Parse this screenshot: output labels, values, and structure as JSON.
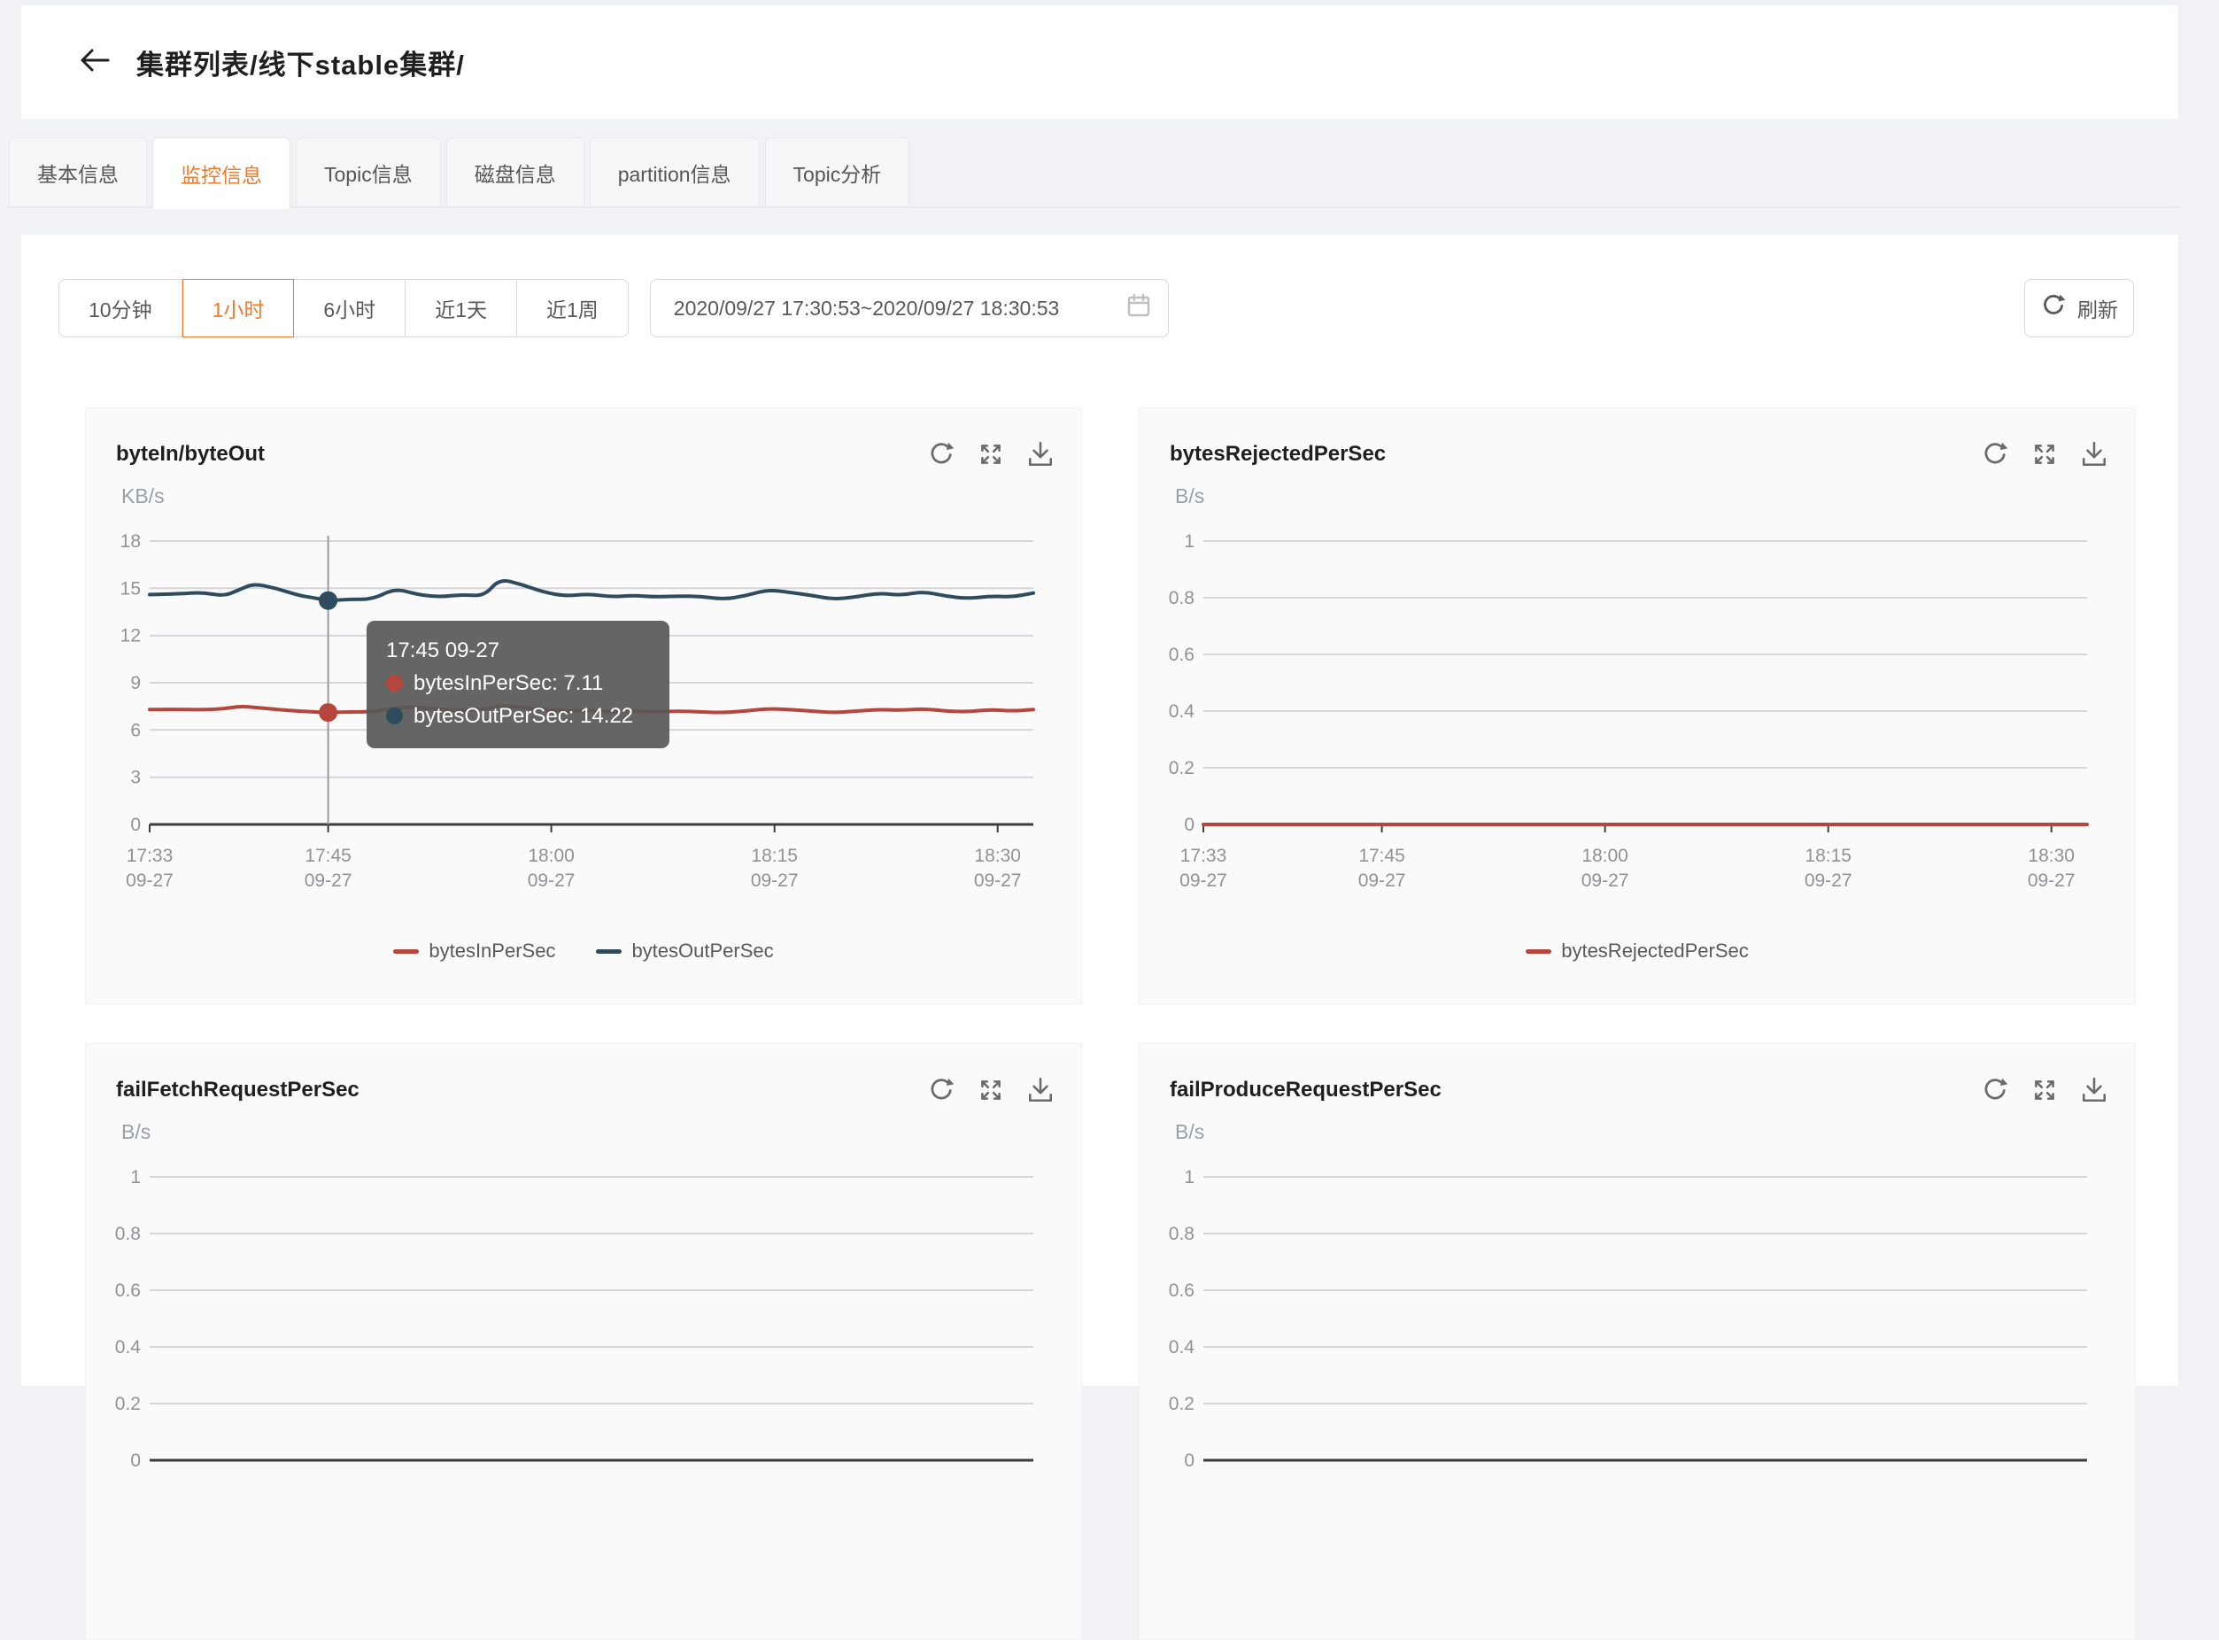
{
  "colors": {
    "accent": "#ed7b30",
    "page_bg": "#f0f2f5",
    "series_red": "#b5463c",
    "series_navy": "#2f4b5e",
    "axis_label": "#8f9296",
    "grid_line": "#d4d6d9",
    "axis_line": "#3b3b3b"
  },
  "header": {
    "back_icon": "arrow-left",
    "breadcrumb": "集群列表/线下stable集群/"
  },
  "tabs": [
    {
      "label": "基本信息",
      "active": false
    },
    {
      "label": "监控信息",
      "active": true
    },
    {
      "label": "Topic信息",
      "active": false
    },
    {
      "label": "磁盘信息",
      "active": false
    },
    {
      "label": "partition信息",
      "active": false
    },
    {
      "label": "Topic分析",
      "active": false
    }
  ],
  "toolbar": {
    "ranges": [
      {
        "label": "10分钟",
        "active": false
      },
      {
        "label": "1小时",
        "active": true
      },
      {
        "label": "6小时",
        "active": false
      },
      {
        "label": "近1天",
        "active": false
      },
      {
        "label": "近1周",
        "active": false
      }
    ],
    "date_start": "2020/09/27 17:30:53",
    "date_separator": "~",
    "date_end": "2020/09/27 18:30:53",
    "calendar_icon": "calendar",
    "refresh_label": "刷新",
    "refresh_icon": "reload"
  },
  "panel_actions": [
    "reload",
    "expand",
    "download"
  ],
  "chart_data": [
    {
      "type": "line",
      "title": "byteIn/byteOut",
      "unit": "KB/s",
      "ylim": [
        0,
        18
      ],
      "yticks": [
        0,
        3,
        6,
        9,
        12,
        15,
        18
      ],
      "x_max": 59.4,
      "x_ticks": [
        {
          "min": 0,
          "time": "17:33",
          "date": "09-27"
        },
        {
          "min": 12,
          "time": "17:45",
          "date": "09-27"
        },
        {
          "min": 27,
          "time": "18:00",
          "date": "09-27"
        },
        {
          "min": 42,
          "time": "18:15",
          "date": "09-27"
        },
        {
          "min": 57,
          "time": "18:30",
          "date": "09-27"
        }
      ],
      "x": [
        0,
        2,
        3.5,
        5,
        6,
        7,
        8.5,
        10,
        11,
        12,
        13.5,
        15,
        16.5,
        18,
        19.5,
        21,
        22.5,
        23.5,
        25,
        26.5,
        28,
        29.5,
        31,
        32.5,
        34,
        35.5,
        37,
        38.5,
        40,
        41.5,
        43,
        44.5,
        46,
        47.5,
        49,
        50.5,
        52,
        53.5,
        55,
        56.5,
        58,
        59.4
      ],
      "series": [
        {
          "name": "bytesInPerSec",
          "color": "#b5463c",
          "values": [
            7.3,
            7.32,
            7.28,
            7.35,
            7.5,
            7.45,
            7.3,
            7.2,
            7.15,
            7.11,
            7.15,
            7.15,
            7.4,
            7.45,
            7.3,
            7.25,
            7.3,
            7.55,
            7.45,
            7.3,
            7.2,
            7.25,
            7.15,
            7.2,
            7.15,
            7.2,
            7.15,
            7.1,
            7.2,
            7.35,
            7.3,
            7.2,
            7.1,
            7.2,
            7.3,
            7.25,
            7.35,
            7.2,
            7.15,
            7.3,
            7.2,
            7.3
          ]
        },
        {
          "name": "bytesOutPerSec",
          "color": "#2f4b5e",
          "values": [
            14.6,
            14.65,
            14.75,
            14.5,
            14.9,
            15.3,
            15.0,
            14.55,
            14.4,
            14.22,
            14.3,
            14.3,
            15.0,
            14.6,
            14.45,
            14.6,
            14.5,
            15.6,
            15.25,
            14.75,
            14.5,
            14.65,
            14.45,
            14.55,
            14.45,
            14.5,
            14.5,
            14.3,
            14.5,
            14.9,
            14.75,
            14.55,
            14.3,
            14.45,
            14.7,
            14.55,
            14.8,
            14.5,
            14.35,
            14.5,
            14.45,
            14.7
          ]
        }
      ],
      "legend": [
        "bytesInPerSec",
        "bytesOutPerSec"
      ],
      "highlight": {
        "x_min": 12,
        "points": [
          {
            "series": "bytesInPerSec",
            "value": 7.11
          },
          {
            "series": "bytesOutPerSec",
            "value": 14.22
          }
        ]
      },
      "tooltip": {
        "time": "17:45 09-27",
        "rows": [
          {
            "label": "bytesInPerSec",
            "value": "7.11",
            "color": "#b5463c"
          },
          {
            "label": "bytesOutPerSec",
            "value": "14.22",
            "color": "#2f4b5e"
          }
        ]
      }
    },
    {
      "type": "line",
      "title": "bytesRejectedPerSec",
      "unit": "B/s",
      "ylim": [
        0,
        1
      ],
      "yticks": [
        0,
        0.2,
        0.4,
        0.6,
        0.8,
        1
      ],
      "x_max": 59.4,
      "x_ticks": [
        {
          "min": 0,
          "time": "17:33",
          "date": "09-27"
        },
        {
          "min": 12,
          "time": "17:45",
          "date": "09-27"
        },
        {
          "min": 27,
          "time": "18:00",
          "date": "09-27"
        },
        {
          "min": 42,
          "time": "18:15",
          "date": "09-27"
        },
        {
          "min": 57,
          "time": "18:30",
          "date": "09-27"
        }
      ],
      "x": [
        0,
        59.4
      ],
      "series": [
        {
          "name": "bytesRejectedPerSec",
          "color": "#b5463c",
          "values": [
            0,
            0
          ]
        }
      ],
      "legend": [
        "bytesRejectedPerSec"
      ]
    },
    {
      "type": "line",
      "title": "failFetchRequestPerSec",
      "unit": "B/s",
      "ylim": [
        0,
        1
      ],
      "yticks": [
        0,
        0.2,
        0.4,
        0.6,
        0.8,
        1
      ],
      "x_max": 59.4,
      "x_ticks": [],
      "x": [],
      "series": [],
      "legend": []
    },
    {
      "type": "line",
      "title": "failProduceRequestPerSec",
      "unit": "B/s",
      "ylim": [
        0,
        1
      ],
      "yticks": [
        0,
        0.2,
        0.4,
        0.6,
        0.8,
        1
      ],
      "x_max": 59.4,
      "x_ticks": [],
      "x": [],
      "series": [],
      "legend": []
    }
  ]
}
